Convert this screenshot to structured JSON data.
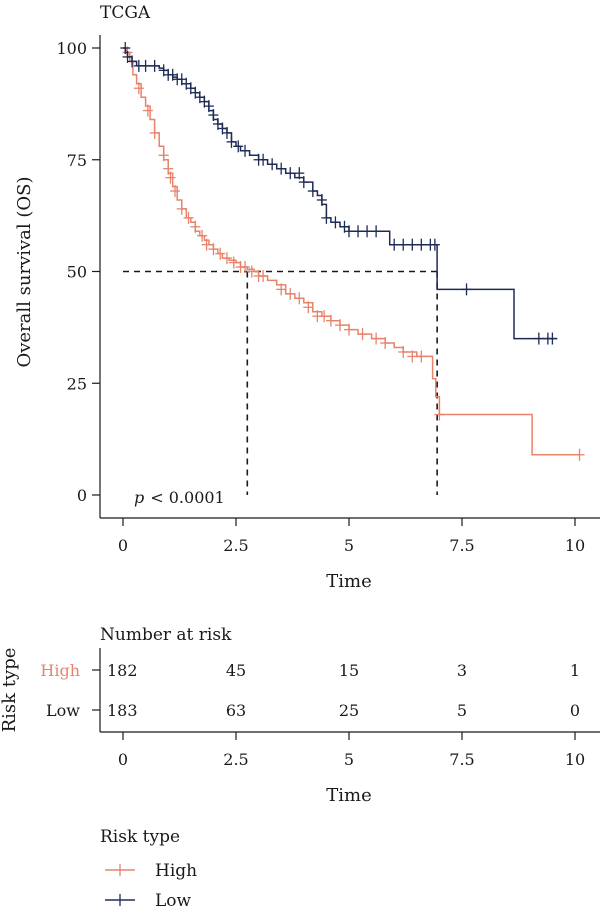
{
  "colors": {
    "high": "#e8836b",
    "low": "#1f2b57",
    "ink": "#1a1a1a"
  },
  "chart_data": [
    {
      "type": "line",
      "title": "TCGA",
      "xlabel": "Time",
      "ylabel": "Overall survival (OS)",
      "xlim": [
        0,
        10
      ],
      "ylim": [
        0,
        100
      ],
      "xticks": [
        {
          "value": 0,
          "label": "0"
        },
        {
          "value": 2.5,
          "label": "2.5"
        },
        {
          "value": 5,
          "label": "5"
        },
        {
          "value": 7.5,
          "label": "7.5"
        },
        {
          "value": 10,
          "label": "10"
        }
      ],
      "yticks": [
        {
          "value": 0,
          "label": "0"
        },
        {
          "value": 25,
          "label": "25"
        },
        {
          "value": 50,
          "label": "50"
        },
        {
          "value": 75,
          "label": "75"
        },
        {
          "value": 100,
          "label": "100"
        }
      ],
      "annotation": {
        "prefix": "p",
        "text": "< 0.0001"
      },
      "median_lines": {
        "y": 50,
        "x": [
          2.75,
          6.95
        ]
      },
      "grid": false,
      "series": [
        {
          "name": "High",
          "color_key": "high",
          "points": [
            [
              0,
              100
            ],
            [
              0.08,
              99
            ],
            [
              0.15,
              97
            ],
            [
              0.22,
              94
            ],
            [
              0.3,
              92
            ],
            [
              0.4,
              89
            ],
            [
              0.5,
              87
            ],
            [
              0.6,
              84
            ],
            [
              0.7,
              81
            ],
            [
              0.8,
              78
            ],
            [
              0.9,
              75
            ],
            [
              1.0,
              72
            ],
            [
              1.1,
              69
            ],
            [
              1.2,
              66
            ],
            [
              1.3,
              64
            ],
            [
              1.4,
              62
            ],
            [
              1.5,
              61
            ],
            [
              1.6,
              59
            ],
            [
              1.7,
              58
            ],
            [
              1.8,
              57
            ],
            [
              1.9,
              56
            ],
            [
              2.0,
              55
            ],
            [
              2.1,
              54
            ],
            [
              2.2,
              53
            ],
            [
              2.35,
              52.5
            ],
            [
              2.5,
              52
            ],
            [
              2.6,
              51
            ],
            [
              2.75,
              50.5
            ],
            [
              2.9,
              50
            ],
            [
              3.0,
              49
            ],
            [
              3.2,
              48
            ],
            [
              3.4,
              47
            ],
            [
              3.6,
              45
            ],
            [
              3.8,
              44
            ],
            [
              4.0,
              43
            ],
            [
              4.2,
              41
            ],
            [
              4.4,
              40
            ],
            [
              4.6,
              39
            ],
            [
              4.8,
              38
            ],
            [
              5.0,
              37
            ],
            [
              5.2,
              36
            ],
            [
              5.5,
              35
            ],
            [
              5.8,
              34
            ],
            [
              6.0,
              33
            ],
            [
              6.2,
              32
            ],
            [
              6.5,
              31
            ],
            [
              6.8,
              31
            ],
            [
              6.85,
              26
            ],
            [
              6.92,
              22
            ],
            [
              7.0,
              18
            ],
            [
              9.0,
              18
            ],
            [
              9.05,
              9
            ],
            [
              10.1,
              9
            ]
          ],
          "censored": [
            [
              0.1,
              99
            ],
            [
              0.35,
              91
            ],
            [
              0.55,
              86
            ],
            [
              0.7,
              81
            ],
            [
              0.9,
              76
            ],
            [
              1.0,
              73
            ],
            [
              1.05,
              71
            ],
            [
              1.15,
              68
            ],
            [
              1.3,
              64
            ],
            [
              1.45,
              62
            ],
            [
              1.6,
              60
            ],
            [
              1.75,
              58
            ],
            [
              1.85,
              56
            ],
            [
              2.0,
              55
            ],
            [
              2.15,
              54
            ],
            [
              2.3,
              53
            ],
            [
              2.45,
              52
            ],
            [
              2.6,
              51
            ],
            [
              2.7,
              51
            ],
            [
              2.85,
              50
            ],
            [
              3.0,
              49
            ],
            [
              3.1,
              49
            ],
            [
              3.5,
              46
            ],
            [
              3.7,
              45
            ],
            [
              3.9,
              44
            ],
            [
              4.1,
              42
            ],
            [
              4.3,
              40
            ],
            [
              4.45,
              40
            ],
            [
              4.6,
              39
            ],
            [
              4.8,
              38
            ],
            [
              5.0,
              37
            ],
            [
              5.3,
              36
            ],
            [
              5.6,
              35
            ],
            [
              5.8,
              34
            ],
            [
              6.2,
              32
            ],
            [
              6.4,
              31
            ],
            [
              6.6,
              31
            ],
            [
              7.0,
              18
            ],
            [
              10.1,
              9
            ]
          ]
        },
        {
          "name": "Low",
          "color_key": "low",
          "points": [
            [
              0,
              100
            ],
            [
              0.05,
              99
            ],
            [
              0.1,
              98
            ],
            [
              0.2,
              97
            ],
            [
              0.3,
              96
            ],
            [
              0.4,
              96
            ],
            [
              0.6,
              96
            ],
            [
              0.8,
              95.5
            ],
            [
              0.9,
              95
            ],
            [
              1.0,
              94
            ],
            [
              1.1,
              93.5
            ],
            [
              1.2,
              93
            ],
            [
              1.3,
              92
            ],
            [
              1.4,
              92
            ],
            [
              1.5,
              91
            ],
            [
              1.6,
              90
            ],
            [
              1.7,
              89
            ],
            [
              1.8,
              88
            ],
            [
              1.9,
              86
            ],
            [
              2.0,
              84
            ],
            [
              2.1,
              83
            ],
            [
              2.2,
              82
            ],
            [
              2.3,
              81
            ],
            [
              2.4,
              79
            ],
            [
              2.5,
              78
            ],
            [
              2.6,
              77
            ],
            [
              2.8,
              76
            ],
            [
              3.0,
              75
            ],
            [
              3.2,
              74
            ],
            [
              3.4,
              73
            ],
            [
              3.6,
              72
            ],
            [
              3.8,
              71
            ],
            [
              4.0,
              70
            ],
            [
              4.2,
              68
            ],
            [
              4.3,
              67
            ],
            [
              4.4,
              65
            ],
            [
              4.5,
              62
            ],
            [
              4.6,
              61
            ],
            [
              4.8,
              60
            ],
            [
              5.0,
              59
            ],
            [
              5.4,
              59
            ],
            [
              5.8,
              59
            ],
            [
              5.9,
              56
            ],
            [
              6.4,
              56
            ],
            [
              6.9,
              56
            ],
            [
              6.95,
              46
            ],
            [
              8.6,
              46
            ],
            [
              8.65,
              35
            ],
            [
              9.6,
              35
            ]
          ],
          "censored": [
            [
              0.05,
              100
            ],
            [
              0.1,
              98
            ],
            [
              0.2,
              97
            ],
            [
              0.35,
              96
            ],
            [
              0.5,
              96
            ],
            [
              0.7,
              96
            ],
            [
              0.9,
              95
            ],
            [
              1.0,
              94
            ],
            [
              1.1,
              94
            ],
            [
              1.2,
              93
            ],
            [
              1.3,
              93
            ],
            [
              1.4,
              92
            ],
            [
              1.5,
              91
            ],
            [
              1.6,
              90
            ],
            [
              1.7,
              89
            ],
            [
              1.8,
              88
            ],
            [
              1.9,
              87
            ],
            [
              2.0,
              85
            ],
            [
              2.1,
              83
            ],
            [
              2.2,
              82
            ],
            [
              2.3,
              81
            ],
            [
              2.4,
              79
            ],
            [
              2.55,
              78
            ],
            [
              2.7,
              77
            ],
            [
              3.0,
              75
            ],
            [
              3.1,
              75
            ],
            [
              3.3,
              74
            ],
            [
              3.5,
              73
            ],
            [
              3.7,
              72
            ],
            [
              3.9,
              72
            ],
            [
              4.0,
              70
            ],
            [
              4.2,
              68
            ],
            [
              4.4,
              66
            ],
            [
              4.5,
              62
            ],
            [
              4.7,
              61
            ],
            [
              4.9,
              60
            ],
            [
              5.0,
              59
            ],
            [
              5.2,
              59
            ],
            [
              5.4,
              59
            ],
            [
              5.6,
              59
            ],
            [
              6.0,
              56
            ],
            [
              6.2,
              56
            ],
            [
              6.4,
              56
            ],
            [
              6.6,
              56
            ],
            [
              6.8,
              56
            ],
            [
              6.9,
              56
            ],
            [
              7.6,
              46
            ],
            [
              9.2,
              35
            ],
            [
              9.4,
              35
            ],
            [
              9.5,
              35
            ]
          ]
        }
      ]
    },
    {
      "type": "table",
      "title": "Number at risk",
      "ylabel": "Risk type",
      "xlabel": "Time",
      "xlim": [
        0,
        10
      ],
      "times": [
        0,
        2.5,
        5,
        7.5,
        10
      ],
      "xticks": [
        {
          "value": 0,
          "label": "0"
        },
        {
          "value": 2.5,
          "label": "2.5"
        },
        {
          "value": 5,
          "label": "5"
        },
        {
          "value": 7.5,
          "label": "7.5"
        },
        {
          "value": 10,
          "label": "10"
        }
      ],
      "rows": [
        {
          "name": "High",
          "color_key": "high",
          "values": [
            "182",
            "45",
            "15",
            "3",
            "1"
          ]
        },
        {
          "name": "Low",
          "color_key": "ink",
          "values": [
            "183",
            "63",
            "25",
            "5",
            "0"
          ]
        }
      ]
    }
  ],
  "legend": {
    "title": "Risk type",
    "placement": "bottom-left",
    "items": [
      {
        "label": "High",
        "color_key": "high"
      },
      {
        "label": "Low",
        "color_key": "low"
      }
    ]
  }
}
